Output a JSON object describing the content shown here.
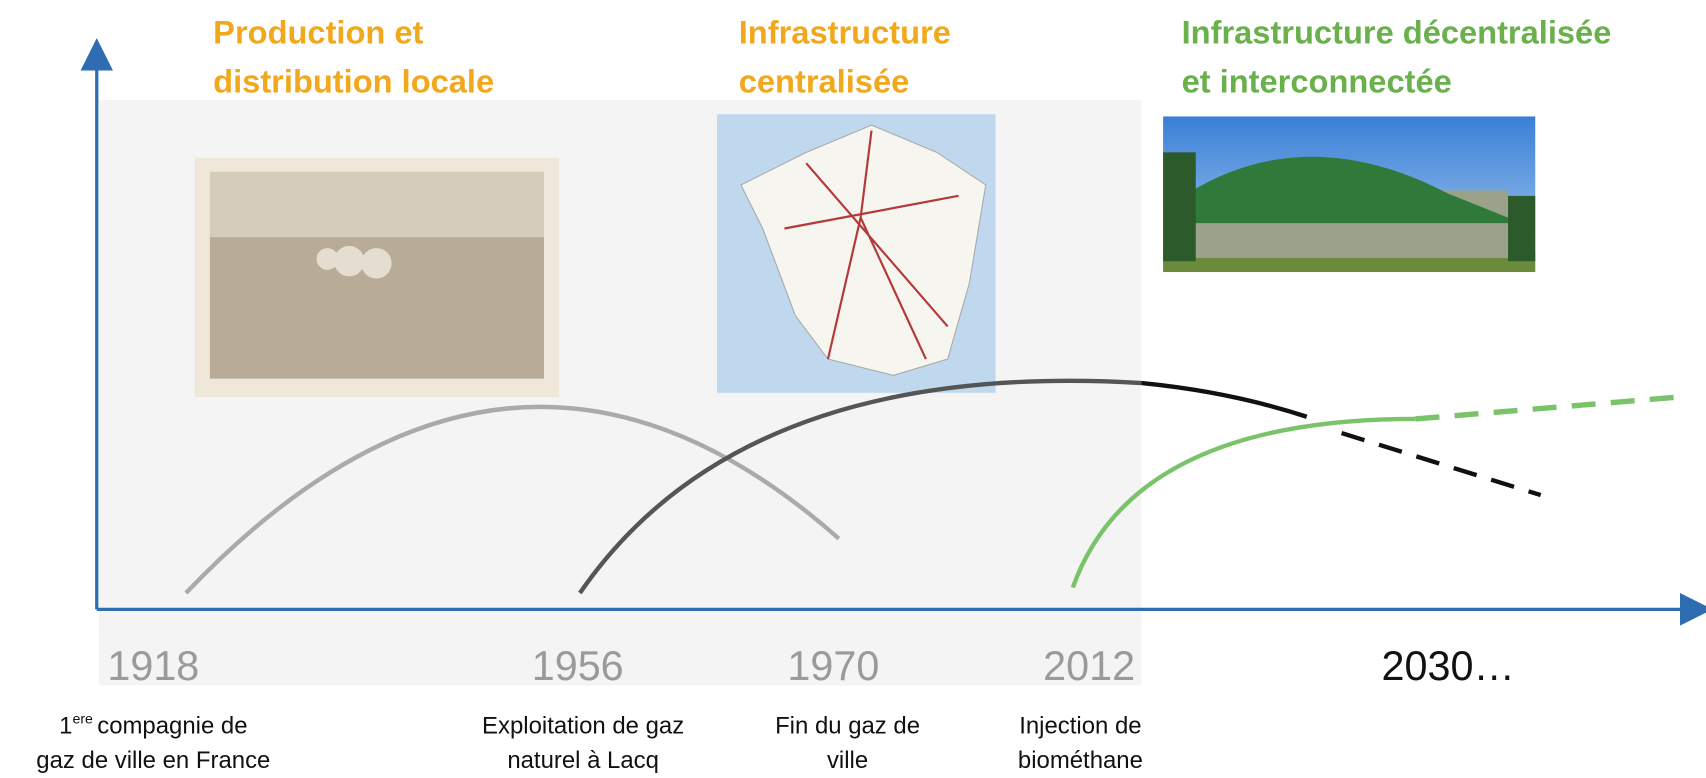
{
  "phases": [
    {
      "lines": [
        "Production et",
        "distribution locale"
      ]
    },
    {
      "lines": [
        "Infrastructure",
        "centralisée"
      ]
    },
    {
      "lines": [
        "Infrastructure décentralisée",
        "et interconnectée"
      ]
    }
  ],
  "years": [
    "1918",
    "1956",
    "1970",
    "2012",
    "2030…"
  ],
  "events": [
    {
      "number": "1",
      "superscript": "ere",
      "lines": [
        "compagnie de",
        "gaz de ville en France"
      ]
    },
    {
      "lines": [
        "Exploitation de gaz",
        "naturel à Lacq"
      ]
    },
    {
      "lines": [
        "Fin du gaz de",
        "ville"
      ]
    },
    {
      "lines": [
        "Injection de",
        "biométhane"
      ]
    }
  ]
}
